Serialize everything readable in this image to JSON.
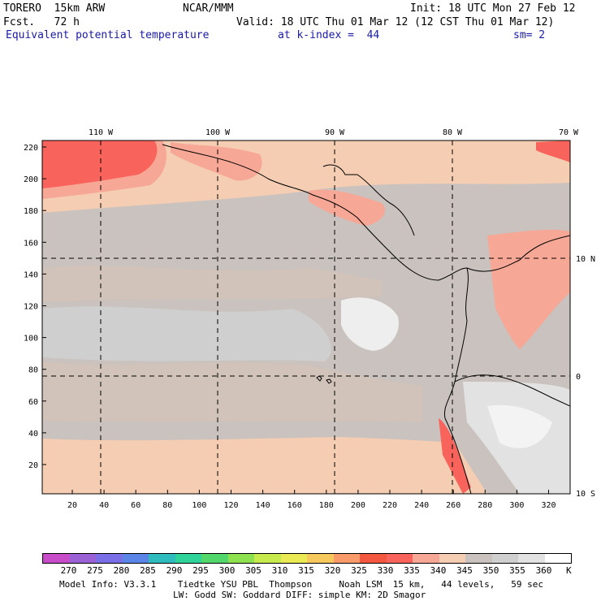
{
  "header": {
    "model": "TORERO  15km ARW",
    "org": "NCAR/MMM",
    "init": "Init: 18 UTC Mon 27 Feb 12",
    "fcst": "Fcst.   72 h",
    "valid": "Valid: 18 UTC Thu 01 Mar 12 (12 CST Thu 01 Mar 12)",
    "field": "Equivalent potential temperature",
    "level": "at k-index =  44",
    "smooth": "sm= 2"
  },
  "axes": {
    "top_lon_labels": [
      "110 W",
      "100 W",
      "90 W",
      "80 W",
      "70 W"
    ],
    "right_lat_labels": [
      "10 N",
      "0",
      "10 S"
    ],
    "left_ticks": [
      "220",
      "200",
      "180",
      "160",
      "140",
      "120",
      "100",
      "80",
      "60",
      "40",
      "20"
    ],
    "bottom_ticks": [
      "20",
      "40",
      "60",
      "80",
      "100",
      "120",
      "140",
      "160",
      "180",
      "200",
      "220",
      "240",
      "260",
      "280",
      "300",
      "320"
    ]
  },
  "colorbar": {
    "labels": [
      "270",
      "275",
      "280",
      "285",
      "290",
      "295",
      "300",
      "305",
      "310",
      "315",
      "320",
      "325",
      "330",
      "335",
      "340",
      "345",
      "350",
      "355",
      "360"
    ],
    "unit": "K",
    "colors": [
      "#c84bc8",
      "#9b62d6",
      "#7a6fe6",
      "#5a84e6",
      "#2fbcbc",
      "#2fd49b",
      "#52d86a",
      "#8fe24f",
      "#c7ea4d",
      "#eaea55",
      "#f7c95c",
      "#f89a6a",
      "#f3573f",
      "#f8635b",
      "#f7a795",
      "#f4cdb2",
      "#c9c2be",
      "#cfcfcf",
      "#e2e2e2",
      "#ffffff"
    ]
  },
  "footer": {
    "line1": "Model Info: V3.3.1    Tiedtke YSU PBL  Thompson     Noah LSM  15 km,   44 levels,   59 sec",
    "line2": "LW: Godd SW: Goddard DIFF: simple KM: 2D Smagor"
  }
}
